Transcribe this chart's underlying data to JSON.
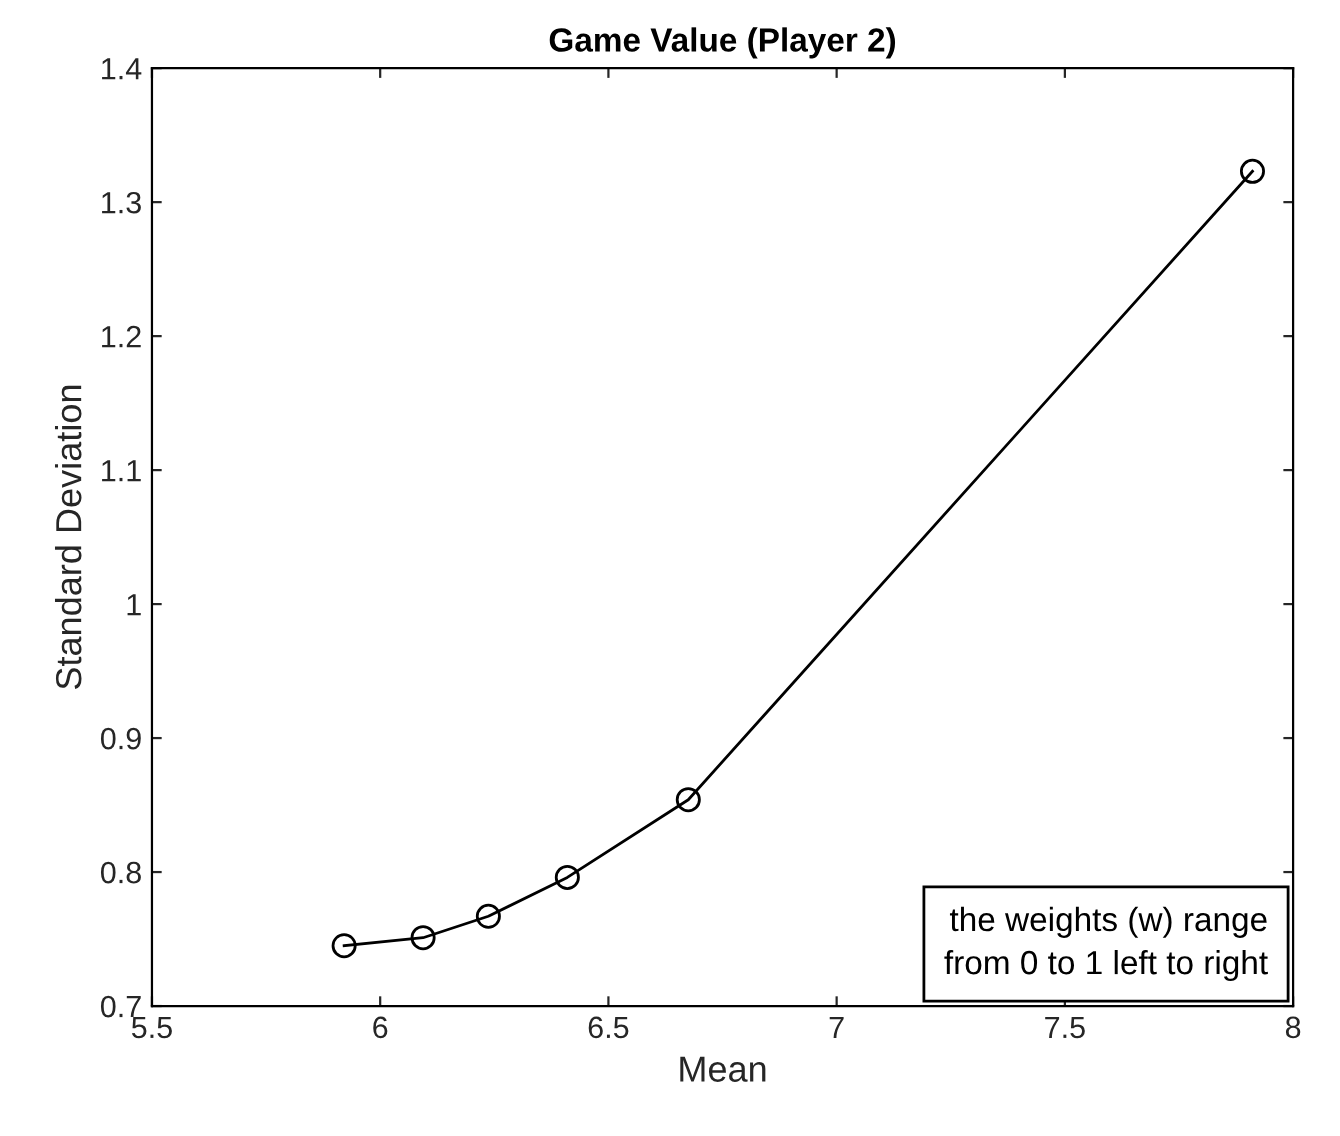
{
  "chart_data": {
    "type": "line",
    "title": "Game Value (Player 2)",
    "xlabel": "Mean",
    "ylabel": "Standard Deviation",
    "x": [
      5.921,
      6.094,
      6.237,
      6.41,
      6.675,
      7.911
    ],
    "series": [
      {
        "color": "#000000",
        "values": [
          0.745,
          0.751,
          0.767,
          0.796,
          0.854,
          1.323
        ]
      }
    ],
    "xlim": [
      5.5,
      8
    ],
    "ylim": [
      0.7,
      1.4
    ],
    "xticks": [
      5.5,
      6,
      6.5,
      7,
      7.5,
      8
    ],
    "yticks": [
      0.7,
      0.8,
      0.9,
      1,
      1.1,
      1.2,
      1.3,
      1.4
    ],
    "marker": "circle",
    "line_style": "solid",
    "grid": false,
    "legend": false,
    "annotations": [
      "the weights (w) range\nfrom 0 to 1 left to right"
    ]
  }
}
